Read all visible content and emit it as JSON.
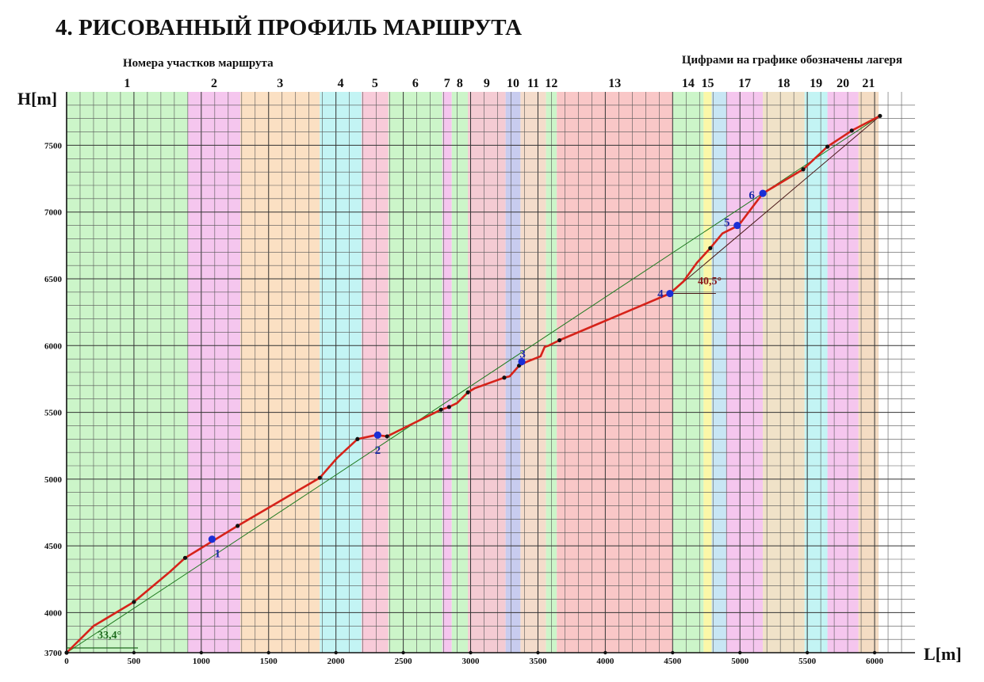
{
  "page": {
    "title": "4. РИСОВАННЫЙ ПРОФИЛЬ МАРШРУТА",
    "segments_caption": "Номера участков маршрута",
    "camps_caption": "Цифрами на графике обозначены лагеря"
  },
  "chart_data": {
    "type": "line",
    "title": "",
    "xlabel": "L[m]",
    "ylabel": "H[m]",
    "xlim": [
      0,
      6300
    ],
    "ylim": [
      3700,
      7900
    ],
    "x_ticks": [
      0,
      500,
      1000,
      1500,
      2000,
      2500,
      3000,
      3500,
      4000,
      4500,
      5000,
      5500,
      6000
    ],
    "y_ticks": [
      3700,
      4000,
      4500,
      5000,
      5500,
      6000,
      6500,
      7000,
      7500
    ],
    "grid": true,
    "segments": [
      {
        "label": "1",
        "start": 0,
        "end": 900,
        "color": "#ccf5c9"
      },
      {
        "label": "2",
        "start": 900,
        "end": 1290,
        "color": "#f5c6ee"
      },
      {
        "label": "3",
        "start": 1290,
        "end": 1880,
        "color": "#fbe0c3"
      },
      {
        "label": "4",
        "start": 1880,
        "end": 2190,
        "color": "#c3f4f4"
      },
      {
        "label": "5",
        "start": 2190,
        "end": 2390,
        "color": "#f8cbd9"
      },
      {
        "label": "6",
        "start": 2390,
        "end": 2790,
        "color": "#ccf5c9"
      },
      {
        "label": "7",
        "start": 2790,
        "end": 2860,
        "color": "#f5c6ee"
      },
      {
        "label": "8",
        "start": 2860,
        "end": 2980,
        "color": "#ccf5c9"
      },
      {
        "label": "9",
        "start": 2980,
        "end": 3260,
        "color": "#f4cbd3"
      },
      {
        "label": "10",
        "start": 3260,
        "end": 3370,
        "color": "#c8ccef"
      },
      {
        "label": "11",
        "start": 3370,
        "end": 3560,
        "color": "#f4dccb"
      },
      {
        "label": "12",
        "start": 3560,
        "end": 3640,
        "color": "#ccf5c9"
      },
      {
        "label": "13",
        "start": 3640,
        "end": 4500,
        "color": "#f9c7c7"
      },
      {
        "label": "14",
        "start": 4500,
        "end": 4730,
        "color": "#ccf5c9"
      },
      {
        "label": "15",
        "start": 4730,
        "end": 4790,
        "color": "#fbf7a8"
      },
      {
        "label": "",
        "start": 4790,
        "end": 4900,
        "color": "#c8e6f4"
      },
      {
        "label": "17",
        "start": 4900,
        "end": 5170,
        "color": "#f5c6ee"
      },
      {
        "label": "18",
        "start": 5170,
        "end": 5480,
        "color": "#f0e2c8"
      },
      {
        "label": "19",
        "start": 5480,
        "end": 5650,
        "color": "#c3f4f4"
      },
      {
        "label": "20",
        "start": 5650,
        "end": 5880,
        "color": "#f5c6ee"
      },
      {
        "label": "21",
        "start": 5880,
        "end": 6030,
        "color": "#f4dcc3"
      }
    ],
    "series": [
      {
        "color": "#d6231a",
        "points": [
          [
            0,
            3700
          ],
          [
            200,
            3900
          ],
          [
            500,
            4080
          ],
          [
            760,
            4300
          ],
          [
            880,
            4410
          ],
          [
            1270,
            4650
          ],
          [
            1880,
            5010
          ],
          [
            2010,
            5160
          ],
          [
            2160,
            5300
          ],
          [
            2300,
            5330
          ],
          [
            2380,
            5320
          ],
          [
            2780,
            5520
          ],
          [
            2840,
            5540
          ],
          [
            2900,
            5570
          ],
          [
            2980,
            5650
          ],
          [
            3030,
            5680
          ],
          [
            3250,
            5760
          ],
          [
            3290,
            5770
          ],
          [
            3360,
            5850
          ],
          [
            3420,
            5880
          ],
          [
            3520,
            5920
          ],
          [
            3550,
            5990
          ],
          [
            3580,
            6000
          ],
          [
            3660,
            6040
          ],
          [
            4480,
            6390
          ],
          [
            4580,
            6480
          ],
          [
            4680,
            6620
          ],
          [
            4780,
            6730
          ],
          [
            4870,
            6840
          ],
          [
            4990,
            6900
          ],
          [
            5170,
            7140
          ],
          [
            5470,
            7320
          ],
          [
            5650,
            7490
          ],
          [
            5830,
            7610
          ],
          [
            6040,
            7720
          ]
        ]
      }
    ],
    "reference_lines": [
      {
        "from": [
          0,
          3700
        ],
        "to": [
          6040,
          7720
        ],
        "color": "#1f7a1f"
      },
      {
        "from": [
          4480,
          6390
        ],
        "to": [
          6040,
          7720
        ],
        "color": "#4a1818"
      }
    ],
    "black_points": [
      [
        0,
        3700
      ],
      [
        500,
        4080
      ],
      [
        880,
        4410
      ],
      [
        1270,
        4650
      ],
      [
        1880,
        5010
      ],
      [
        2160,
        5300
      ],
      [
        2380,
        5320
      ],
      [
        2780,
        5520
      ],
      [
        2840,
        5540
      ],
      [
        2980,
        5650
      ],
      [
        3250,
        5760
      ],
      [
        3360,
        5850
      ],
      [
        3660,
        6040
      ],
      [
        4780,
        6730
      ],
      [
        5470,
        7320
      ],
      [
        5650,
        7490
      ],
      [
        5830,
        7610
      ],
      [
        6040,
        7720
      ]
    ],
    "camps": [
      {
        "label": "1",
        "x": 1080,
        "y": 4550
      },
      {
        "label": "2",
        "x": 2310,
        "y": 5330
      },
      {
        "label": "3",
        "x": 3380,
        "y": 5880
      },
      {
        "label": "4",
        "x": 4480,
        "y": 6390
      },
      {
        "label": "5",
        "x": 4980,
        "y": 6900
      },
      {
        "label": "6",
        "x": 5170,
        "y": 7140
      }
    ],
    "angle_annotations": [
      {
        "text": "33,4°",
        "color": "#1f6b1f"
      },
      {
        "text": "40,5°",
        "color": "#8b1a1a"
      }
    ]
  }
}
